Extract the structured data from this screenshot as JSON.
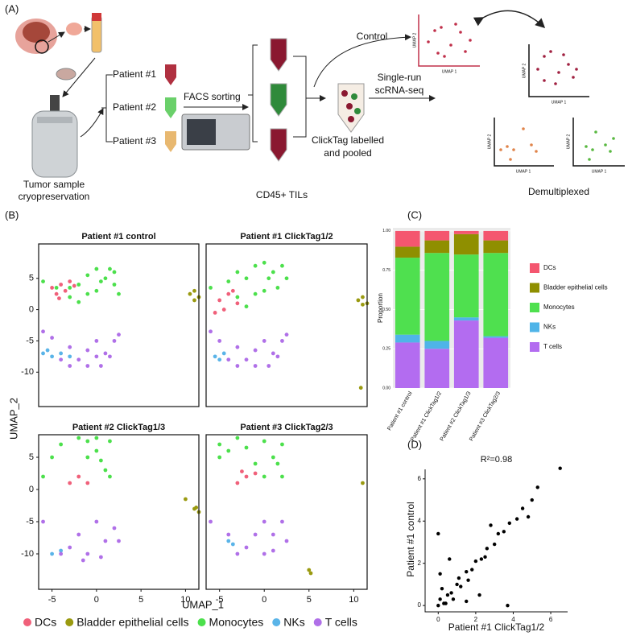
{
  "panel_a": {
    "label": "(A)",
    "patients": [
      "Patient #1",
      "Patient #2",
      "Patient #3"
    ],
    "facs": "FACS sorting",
    "tumor_sample": [
      "Tumor sample",
      "cryopreservation"
    ],
    "cd45": "CD45+ TILs",
    "control": "Control",
    "scrna": [
      "Single-run",
      "scRNA-seq"
    ],
    "clicktag": [
      "ClickTag labelled",
      "and pooled"
    ],
    "demultiplexed": "Demultiplexed",
    "mini_x": "UMAP 1",
    "mini_y": "UMAP 2"
  },
  "panel_b": {
    "label": "(B)",
    "x_label": "UMAP_1",
    "y_label": "UMAP_2"
  },
  "panel_c": {
    "label": "(C)"
  },
  "panel_d": {
    "label": "(D)"
  },
  "chart_data": [
    {
      "type": "umap",
      "title": "Patient #1 control",
      "xlim": [
        -6.5,
        11.5
      ],
      "ylim": [
        -15.5,
        10.5
      ],
      "yticks": [
        -10,
        -5,
        0,
        5
      ],
      "series": [
        {
          "name": "DCs",
          "color": "#f0607a",
          "x": [
            -5,
            -4,
            -3.5,
            -3,
            -4.5,
            -2.5,
            -4.2
          ],
          "y": [
            3.5,
            4,
            3,
            4.5,
            2.5,
            3.8,
            1.8
          ]
        },
        {
          "name": "Bladder epithelial cells",
          "color": "#9a9a10",
          "x": [
            10.5,
            11,
            11.5,
            11
          ],
          "y": [
            2.5,
            3,
            2,
            1.5
          ]
        },
        {
          "name": "Monocytes",
          "color": "#4ce04c",
          "x": [
            -6,
            -4.5,
            -3,
            -2,
            -1,
            0,
            1,
            2,
            2.5,
            0,
            -1,
            1.5,
            -3,
            0.5,
            -2,
            2
          ],
          "y": [
            4.5,
            3.5,
            2,
            4,
            5.5,
            6.5,
            5,
            4,
            2.5,
            3,
            2.5,
            6.5,
            3.5,
            4.5,
            1.2,
            6
          ]
        },
        {
          "name": "NKs",
          "color": "#5ab4e8",
          "x": [
            -6,
            -5,
            -4,
            -3,
            -5.5
          ],
          "y": [
            -7,
            -7.5,
            -7,
            -7.5,
            -6.5
          ]
        },
        {
          "name": "T cells",
          "color": "#b070e8",
          "x": [
            -6,
            -5,
            -3,
            -2,
            -1,
            0,
            1,
            2,
            2.5,
            -1,
            0.5,
            -3,
            1.5,
            -4,
            0
          ],
          "y": [
            -3.5,
            -4.5,
            -6,
            -8,
            -6.5,
            -5,
            -7,
            -5,
            -4,
            -9,
            -9,
            -9,
            -7.5,
            -8,
            -7.5
          ]
        }
      ]
    },
    {
      "type": "umap",
      "title": "Patient #1 ClickTag1/2",
      "xlim": [
        -6.5,
        11.5
      ],
      "ylim": [
        -15.5,
        10.5
      ],
      "series": [
        {
          "name": "DCs",
          "color": "#f0607a",
          "x": [
            -5,
            -4,
            -3.5,
            -3,
            -4.5,
            -5.5
          ],
          "y": [
            1.5,
            2.5,
            3,
            1,
            0,
            -0.5
          ]
        },
        {
          "name": "Bladder epithelial cells",
          "color": "#9a9a10",
          "x": [
            10.5,
            11,
            11.5,
            11,
            10.8
          ],
          "y": [
            1.5,
            2,
            1,
            0.8,
            -12.5
          ]
        },
        {
          "name": "Monocytes",
          "color": "#4ce04c",
          "x": [
            -6,
            -4,
            -3,
            -2,
            -1,
            0,
            1,
            2,
            2.5,
            0,
            -1,
            1.5,
            -3,
            0.5,
            -2
          ],
          "y": [
            3.5,
            4.5,
            6,
            5,
            7,
            7.5,
            6,
            7,
            5,
            3,
            2.5,
            3.5,
            2,
            5,
            0.5
          ]
        },
        {
          "name": "NKs",
          "color": "#5ab4e8",
          "x": [
            -5.5,
            -5,
            -4.5
          ],
          "y": [
            -7.5,
            -8,
            -7
          ]
        },
        {
          "name": "T cells",
          "color": "#b070e8",
          "x": [
            -6,
            -5,
            -3,
            -2,
            -1,
            0,
            1,
            2,
            2.5,
            -1,
            0.5,
            -3,
            1.5,
            -4
          ],
          "y": [
            -3.5,
            -5,
            -6,
            -8,
            -6.5,
            -5,
            -7,
            -5,
            -4,
            -9,
            -9,
            -9,
            -7.5,
            -8
          ]
        }
      ]
    },
    {
      "type": "umap",
      "title": "Patient #2 ClickTag1/3",
      "xlim": [
        -6.5,
        11.5
      ],
      "ylim": [
        -15.5,
        8.5
      ],
      "xticks": [
        -5,
        0,
        5,
        10
      ],
      "yticks": [
        -10,
        -5,
        0,
        5
      ],
      "series": [
        {
          "name": "DCs",
          "color": "#f0607a",
          "x": [
            -3,
            -2,
            -1
          ],
          "y": [
            1,
            2,
            1
          ]
        },
        {
          "name": "Bladder epithelial cells",
          "color": "#9a9a10",
          "x": [
            11,
            11.5,
            10,
            11.2
          ],
          "y": [
            -3,
            -3.5,
            -1.5,
            -2.8
          ]
        },
        {
          "name": "Monocytes",
          "color": "#4ce04c",
          "x": [
            -4,
            -2,
            0,
            1.5,
            0,
            -1,
            1,
            -5,
            -6,
            1.5,
            -1,
            0.5
          ],
          "y": [
            7,
            8,
            8,
            7.5,
            6,
            5,
            3,
            5,
            2,
            2,
            7.5,
            4.5
          ]
        },
        {
          "name": "NKs",
          "color": "#5ab4e8",
          "x": [
            -5,
            -4
          ],
          "y": [
            -10,
            -9.5
          ]
        },
        {
          "name": "T cells",
          "color": "#b070e8",
          "x": [
            -6,
            -3,
            -1,
            1,
            2,
            0,
            -2,
            2.5,
            -4,
            -1.5,
            0.5
          ],
          "y": [
            -5,
            -9,
            -10,
            -8,
            -6,
            -5,
            -7,
            -8,
            -10,
            -11,
            -10.5
          ]
        }
      ]
    },
    {
      "type": "umap",
      "title": "Patient #3 ClickTag2/3",
      "xlim": [
        -6.5,
        11.5
      ],
      "ylim": [
        -15.5,
        8.5
      ],
      "xticks": [
        -5,
        0,
        5,
        10
      ],
      "series": [
        {
          "name": "DCs",
          "color": "#f0607a",
          "x": [
            -2,
            -3,
            -1,
            -2.5
          ],
          "y": [
            2,
            1,
            2.5,
            2.8
          ]
        },
        {
          "name": "Bladder epithelial cells",
          "color": "#9a9a10",
          "x": [
            5,
            5.2,
            11
          ],
          "y": [
            -12.5,
            -13,
            1
          ]
        },
        {
          "name": "Monocytes",
          "color": "#4ce04c",
          "x": [
            -5,
            -3,
            0,
            2,
            1,
            -1,
            2,
            -5,
            0,
            -4,
            -2,
            1.5
          ],
          "y": [
            7,
            8,
            7.5,
            7,
            5,
            4,
            2,
            5,
            2,
            6,
            6.5,
            4
          ]
        },
        {
          "name": "NKs",
          "color": "#5ab4e8",
          "x": [
            -4,
            -3.5
          ],
          "y": [
            -8,
            -8.5
          ]
        },
        {
          "name": "T cells",
          "color": "#b070e8",
          "x": [
            -6,
            -4,
            -2,
            0,
            1,
            2,
            0,
            -1,
            2.5,
            -3,
            1
          ],
          "y": [
            -5,
            -7,
            -9,
            -10,
            -7,
            -5,
            -5,
            -7,
            -8,
            -10,
            -9.5
          ]
        }
      ]
    },
    {
      "type": "stacked_bar",
      "y_label": "Proportion",
      "categories": [
        "Patient #1 control",
        "Patient #1 ClickTag1/2",
        "Patient #2 ClickTag1/3",
        "Patient #3 ClickTag2/3"
      ],
      "ylim": [
        0,
        1.02
      ],
      "yticks": [
        {
          "value": 0,
          "label": "0.00"
        },
        {
          "value": 0.25,
          "label": "0.25"
        },
        {
          "value": 0.5,
          "label": "0.50"
        },
        {
          "value": 0.75,
          "label": "0.75"
        },
        {
          "value": 1,
          "label": "1.00"
        }
      ],
      "series": [
        {
          "name": "DCs",
          "color": "#f4566f",
          "values": [
            0.1,
            0.06,
            0.02,
            0.06
          ]
        },
        {
          "name": "Bladder epithelial cells",
          "color": "#8f8f00",
          "values": [
            0.07,
            0.08,
            0.13,
            0.08
          ]
        },
        {
          "name": "Monocytes",
          "color": "#4fe04f",
          "values": [
            0.49,
            0.56,
            0.4,
            0.53
          ]
        },
        {
          "name": "NKs",
          "color": "#4fb4e8",
          "values": [
            0.05,
            0.05,
            0.02,
            0.01
          ]
        },
        {
          "name": "T cells",
          "color": "#b36cf0",
          "values": [
            0.29,
            0.25,
            0.43,
            0.32
          ]
        }
      ]
    },
    {
      "type": "scatter",
      "title": "R²=0.98",
      "x_label": "Patient #1 ClickTag1/2",
      "y_label": "Patient #1 control",
      "color": "#000000",
      "xlim": [
        -0.7,
        6.9
      ],
      "ylim": [
        -0.3,
        6.45
      ],
      "xticks": [
        0,
        2,
        4,
        6
      ],
      "yticks": [
        0,
        2,
        4,
        6
      ],
      "x": [
        0,
        0.1,
        0.3,
        0.5,
        0.2,
        0.8,
        1,
        1.2,
        1.5,
        1.8,
        2,
        2.3,
        2.6,
        3,
        3.2,
        3.5,
        3.8,
        4.2,
        4.5,
        5,
        5.3,
        6.5,
        0,
        0.6,
        2.2,
        3.7,
        0.1,
        1.5,
        2.8,
        4.8,
        0.4,
        1.1,
        0.7,
        2.5,
        1.6
      ],
      "y": [
        0,
        0.3,
        0.1,
        0.5,
        0.8,
        0.3,
        1,
        0.9,
        1.6,
        1.7,
        2.1,
        2.2,
        2.7,
        2.9,
        3.4,
        3.5,
        3.9,
        4.1,
        4.6,
        5,
        5.6,
        6.5,
        3.4,
        2.2,
        0.5,
        0,
        1.5,
        0.2,
        3.8,
        4.2,
        0.1,
        1.3,
        0.6,
        2.3,
        1.2
      ]
    }
  ]
}
